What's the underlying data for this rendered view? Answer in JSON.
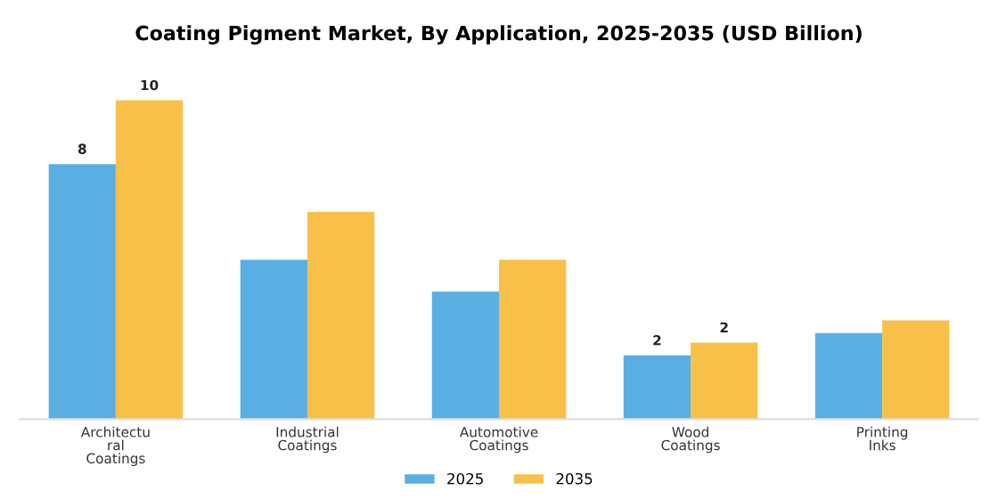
{
  "chart_data": {
    "type": "bar",
    "title": "Coating Pigment Market, By Application, 2025-2035 (USD Billion)",
    "categories": [
      "Architectu\nral\nCoatings",
      "Industrial\nCoatings",
      "Automotive\nCoatings",
      "Wood\nCoatings",
      "Printing\nInks"
    ],
    "series": [
      {
        "name": "2025",
        "color": "#5aafe2",
        "values": [
          8,
          5.0,
          4.0,
          2.0,
          2.7
        ],
        "value_labels": [
          "8",
          null,
          null,
          "2",
          null
        ]
      },
      {
        "name": "2035",
        "color": "#f9c049",
        "values": [
          10,
          6.5,
          5.0,
          2.4,
          3.1
        ],
        "value_labels": [
          "10",
          null,
          null,
          "2",
          null
        ]
      }
    ],
    "legend": "bottom",
    "grid": false
  }
}
